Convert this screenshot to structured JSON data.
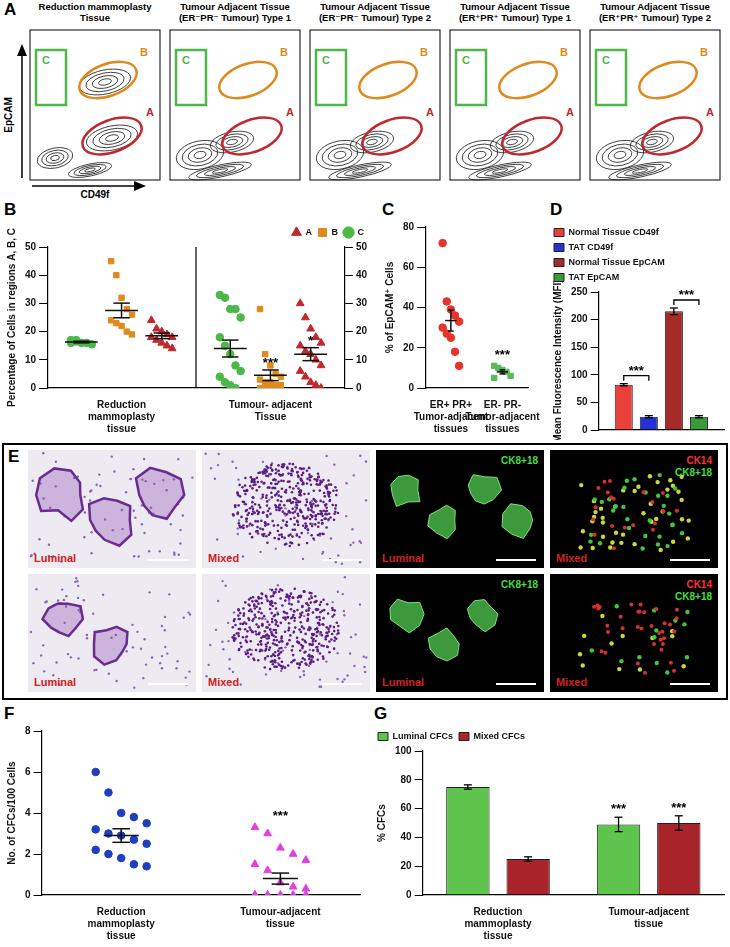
{
  "panel_a": {
    "panel": "A",
    "y_label": "EpCAM",
    "x_label": "CD49f",
    "gates": [
      {
        "name": "A",
        "color": "#c0282d"
      },
      {
        "name": "B",
        "color": "#e08a1e"
      },
      {
        "name": "C",
        "color": "#4cb848"
      }
    ],
    "plots": [
      {
        "title": "Reduction mammoplasty Tissue",
        "pattern": "normal"
      },
      {
        "title": "Tumour Adjacent Tissue (ER⁻PR⁻ Tumour) Type 1",
        "pattern": "tumour"
      },
      {
        "title": "Tumour Adjacent Tissue (ER⁻PR⁻ Tumour) Type 2",
        "pattern": "tumour"
      },
      {
        "title": "Tumour Adjacent Tissue (ER⁺PR⁺ Tumour) Type 1",
        "pattern": "tumour"
      },
      {
        "title": "Tumour Adjacent Tissue (ER⁺PR⁺ Tumour) Type 2",
        "pattern": "tumour"
      }
    ]
  },
  "chart_data": [
    {
      "panel": "B",
      "type": "scatter",
      "y_label": "Percentage of Cells in regions A, B, C",
      "categories": [
        "Reduction mammoplasty tissue",
        "Tumour- adjacent Tissue"
      ],
      "ylim": [
        0,
        50
      ],
      "yticks": [
        0,
        10,
        20,
        30,
        40,
        50
      ],
      "y2lim": [
        0,
        50
      ],
      "y2ticks": [
        0,
        10,
        20,
        30,
        40,
        50
      ],
      "legend": "top-right",
      "series": [
        {
          "name": "A",
          "color": "#c0282d",
          "marker": "triangle",
          "values": [
            [
              24,
              21,
              20,
              19,
              18,
              18,
              17,
              16,
              15,
              14
            ],
            [
              30,
              25,
              21,
              18,
              16,
              15,
              13,
              12,
              10,
              8,
              6,
              4,
              2,
              1,
              0
            ]
          ],
          "mean": [
            18.5,
            12
          ],
          "sem": [
            1.0,
            2.3
          ]
        },
        {
          "name": "B",
          "color": "#e08a1e",
          "marker": "square",
          "values": [
            [
              45,
              40,
              32,
              28,
              26,
              24,
              23,
              22,
              20,
              19
            ],
            [
              28,
              12,
              8,
              5,
              4,
              3,
              2,
              2,
              1,
              1,
              0,
              0,
              0,
              0,
              0
            ]
          ],
          "mean": [
            27.5,
            4.5
          ],
          "sem": [
            2.6,
            1.9
          ]
        },
        {
          "name": "C",
          "color": "#4cb848",
          "marker": "circle",
          "values": [
            [
              17,
              16.5,
              16,
              16,
              15.5,
              16,
              17
            ],
            [
              33,
              32,
              28,
              28,
              25,
              18,
              15,
              12,
              8,
              6,
              4,
              2,
              1,
              0
            ]
          ],
          "mean": [
            16.3,
            14
          ],
          "sem": [
            0.3,
            3
          ]
        }
      ],
      "annotations": [
        {
          "text": "***",
          "category": 1,
          "series": "B"
        },
        {
          "text": "*",
          "category": 1,
          "series": "A"
        }
      ]
    },
    {
      "panel": "C",
      "type": "scatter",
      "y_label": "% of EpCAM⁺ Cells",
      "categories": [
        "ER+ PR+ Tumor-adjacent tissues",
        "ER- PR- Tumor-adjacent tissues"
      ],
      "ylim": [
        0,
        80
      ],
      "yticks": [
        0,
        20,
        40,
        60,
        80
      ],
      "series": [
        {
          "color": "#e8332a",
          "marker": "circle",
          "values": [
            [
              72,
              43,
              39,
              36,
              33,
              30,
              27,
              25,
              18,
              11
            ],
            []
          ],
          "mean": [
            33.5,
            null
          ],
          "sem": [
            5.2,
            null
          ]
        },
        {
          "color": "#5cb85c",
          "marker": "square",
          "values": [
            [],
            [
              11,
              10,
              9,
              8,
              6,
              5
            ]
          ],
          "mean": [
            null,
            8
          ],
          "sem": [
            null,
            1
          ]
        }
      ],
      "annotations": [
        {
          "text": "***",
          "category": 1
        }
      ]
    },
    {
      "panel": "D",
      "type": "bar",
      "y_label": "Mean Fluorescence Intensity (MFI)",
      "categories": [
        null
      ],
      "ylim": [
        0,
        250
      ],
      "yticks": [
        0,
        50,
        100,
        150,
        200,
        250
      ],
      "legend": "top-left",
      "tick_labels": "y",
      "series": [
        {
          "name": "Normal Tissue CD49f",
          "color": "#e8403a",
          "values": [
            82
          ],
          "errors": [
            2
          ]
        },
        {
          "name": "TAT CD49f",
          "color": "#2430d8",
          "values": [
            24
          ],
          "errors": [
            2
          ]
        },
        {
          "name": "Normal Tissue EpCAM",
          "color": "#a52a2a",
          "values": [
            215
          ],
          "errors": [
            6
          ]
        },
        {
          "name": "TAT EpCAM",
          "color": "#3a9a3a",
          "values": [
            24
          ],
          "errors": [
            2
          ]
        }
      ],
      "annotations": [
        {
          "text": "***",
          "between": [
            "Normal Tissue CD49f",
            "TAT CD49f"
          ]
        },
        {
          "text": "***",
          "between": [
            "Normal Tissue EpCAM",
            "TAT EpCAM"
          ]
        }
      ]
    },
    {
      "panel": "F",
      "type": "scatter",
      "y_label": "No. of CFCs/100 Cells",
      "categories": [
        "Reduction mammoplasty tissue",
        "Tumour-adjacent tissue"
      ],
      "ylim": [
        0,
        8
      ],
      "yticks": [
        0,
        2,
        4,
        6,
        8
      ],
      "series": [
        {
          "color": "#1f3fbf",
          "marker": "circle",
          "values": [
            [
              6,
              5,
              4,
              3.8,
              3.5,
              3.2,
              3,
              2.9,
              2.7,
              2.5,
              2.2,
              2,
              1.8,
              1.5,
              1.4
            ],
            []
          ],
          "mean": [
            2.9,
            null
          ],
          "sem": [
            0.33,
            null
          ]
        },
        {
          "color": "#e040e0",
          "marker": "triangle",
          "values": [
            [],
            [
              3.3,
              3,
              2.3,
              2,
              1.7,
              1.5,
              1.2,
              0.6,
              0.4,
              0.3,
              0,
              0,
              0,
              0,
              0,
              0
            ]
          ],
          "mean": [
            null,
            0.8
          ],
          "sem": [
            null,
            0.27
          ]
        }
      ],
      "annotations": [
        {
          "text": "***",
          "category": 1
        }
      ]
    },
    {
      "panel": "G",
      "type": "bar",
      "y_label": "% CFCs",
      "categories": [
        "Reduction mammoplasty tissue",
        "Tumour-adjacent tissue"
      ],
      "ylim": [
        0,
        100
      ],
      "yticks": [
        0,
        20,
        40,
        60,
        80,
        100
      ],
      "legend": "top-left",
      "series": [
        {
          "name": "Luminal CFCs",
          "color": "#5ec44e",
          "values": [
            75,
            49
          ],
          "errors": [
            1.5,
            5
          ]
        },
        {
          "name": "Mixed CFCs",
          "color": "#a8242a",
          "values": [
            25,
            50
          ],
          "errors": [
            1.5,
            5
          ]
        }
      ],
      "annotations": [
        {
          "text": "***",
          "series": "Luminal CFCs",
          "category": 1
        },
        {
          "text": "***",
          "series": "Mixed CFCs",
          "category": 1
        }
      ]
    }
  ],
  "panel_e": {
    "panel": "E",
    "rows": [
      [
        {
          "label": "Luminal",
          "stains": []
        },
        {
          "label": "Mixed",
          "stains": []
        },
        {
          "label": "Luminal",
          "stains": [
            {
              "text": "CK8+18",
              "color": "#44dd44"
            }
          ]
        },
        {
          "label": "Mixed",
          "stains": [
            {
              "text": "CK14",
              "color": "#ff3030"
            },
            {
              "text": "CK8+18",
              "color": "#44dd44"
            }
          ]
        }
      ],
      [
        {
          "label": "Luminal",
          "stains": []
        },
        {
          "label": "Mixed",
          "stains": []
        },
        {
          "label": "Luminal",
          "stains": [
            {
              "text": "CK8+18",
              "color": "#44dd44"
            }
          ]
        },
        {
          "label": "Mixed",
          "stains": [
            {
              "text": "CK14",
              "color": "#ff3030"
            },
            {
              "text": "CK8+18",
              "color": "#44dd44"
            }
          ]
        }
      ]
    ]
  }
}
